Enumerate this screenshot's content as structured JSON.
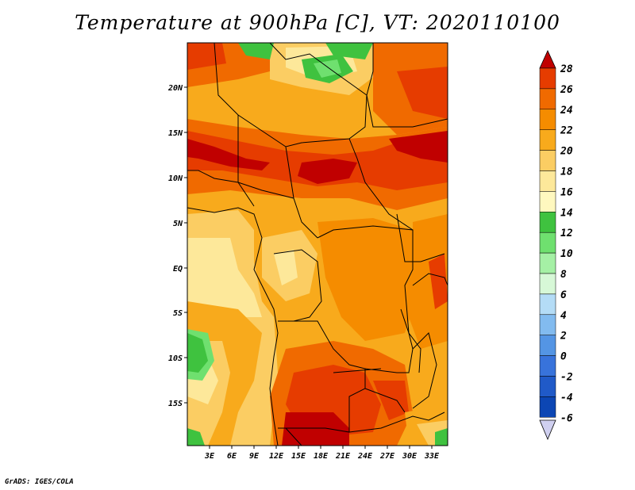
{
  "title": "Temperature at 900hPa [C], VT: 2020110100",
  "credit": "GrADS: IGES/COLA",
  "map": {
    "lon_labels": [
      "3E",
      "6E",
      "9E",
      "12E",
      "15E",
      "18E",
      "21E",
      "24E",
      "27E",
      "30E",
      "33E"
    ],
    "lat_labels": [
      "20N",
      "15N",
      "10N",
      "5N",
      "EQ",
      "5S",
      "10S",
      "15S"
    ]
  },
  "colorbar": {
    "labels": [
      "28",
      "26",
      "24",
      "22",
      "20",
      "18",
      "16",
      "14",
      "12",
      "10",
      "8",
      "6",
      "4",
      "2",
      "0",
      "-2",
      "-4",
      "-6"
    ],
    "colors": [
      "#c00000",
      "#e63c00",
      "#f06a00",
      "#f58c00",
      "#f8aa1c",
      "#fbcd63",
      "#fde89a",
      "#fff8bf",
      "#3fc23f",
      "#6fe06f",
      "#a5f0a5",
      "#d7f8d7",
      "#b4dcf6",
      "#82bbef",
      "#5495e4",
      "#3873db",
      "#205ac8",
      "#0c46b4",
      "#0a2a80"
    ]
  }
}
